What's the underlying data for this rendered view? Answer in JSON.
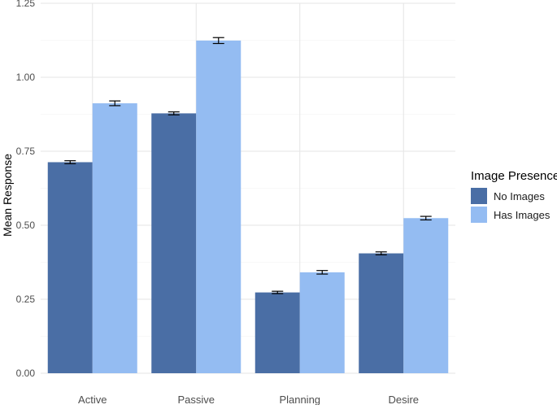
{
  "chart_data": {
    "type": "bar",
    "categories": [
      "Active",
      "Passive",
      "Planning",
      "Desire"
    ],
    "series": [
      {
        "name": "No Images",
        "color": "#4a6ea5",
        "values": [
          0.713,
          0.878,
          0.273,
          0.405
        ],
        "errors": [
          0.005,
          0.005,
          0.004,
          0.005
        ]
      },
      {
        "name": "Has Images",
        "color": "#94bcf2",
        "values": [
          0.912,
          1.124,
          0.341,
          0.524
        ],
        "errors": [
          0.008,
          0.01,
          0.006,
          0.006
        ]
      }
    ],
    "ylabel": "Mean Response",
    "xlabel": "",
    "ylim": [
      0,
      1.25
    ],
    "yticks": [
      "0.00",
      "0.25",
      "0.50",
      "0.75",
      "1.00",
      "1.25"
    ],
    "legend": {
      "title": "Image Presence",
      "position": "right"
    },
    "grid": true
  }
}
